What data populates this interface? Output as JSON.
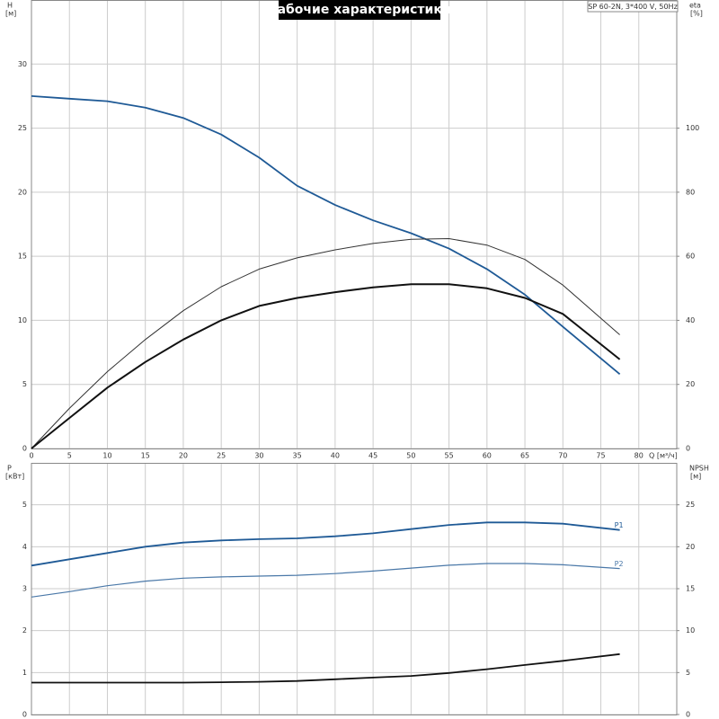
{
  "chart_data": [
    {
      "type": "line",
      "title": "Рабочие характеристики",
      "subtitle": "SP 60-2N, 3*400 V, 50Hz",
      "y_label": "H",
      "y_unit": "[м]",
      "y2_label": "eta",
      "y2_unit": "[%]",
      "x_label": "Q [м³/ч]",
      "x": [
        0,
        5,
        10,
        15,
        20,
        25,
        30,
        35,
        40,
        45,
        50,
        55,
        60,
        65,
        70,
        77.5
      ],
      "xlim": [
        0,
        85
      ],
      "xticks": [
        0,
        5,
        10,
        15,
        20,
        25,
        30,
        35,
        40,
        45,
        50,
        55,
        60,
        65,
        70,
        75,
        80
      ],
      "ylim": [
        0,
        35
      ],
      "yticks": [
        0,
        5,
        10,
        15,
        20,
        25,
        30
      ],
      "y2lim": [
        0,
        140
      ],
      "y2ticks": [
        0,
        20,
        40,
        60,
        80,
        100
      ],
      "grid": true,
      "series": [
        {
          "color": "#1f5a96",
          "width": 1.8,
          "values": [
            27.5,
            27.3,
            27.1,
            26.6,
            25.8,
            24.5,
            22.7,
            20.5,
            19,
            17.8,
            16.8,
            15.6,
            14,
            12,
            9.5,
            5.8
          ]
        },
        {
          "color": "#333333",
          "width": 1,
          "axis": "y2",
          "values": [
            0,
            12.5,
            24,
            34,
            43,
            50.5,
            56,
            59.5,
            62,
            64,
            65.3,
            65.5,
            63.5,
            59,
            51,
            35.5
          ]
        },
        {
          "color": "#111111",
          "width": 2,
          "axis": "y2",
          "values": [
            0,
            9.5,
            19,
            27,
            34,
            40,
            44.5,
            47,
            48.8,
            50.3,
            51.3,
            51.3,
            50,
            47,
            42,
            27.8
          ]
        }
      ]
    },
    {
      "type": "line",
      "y_label": "P",
      "y_unit": "[кВт]",
      "y2_label": "NPSH",
      "y2_unit": "[м]",
      "x": [
        0,
        5,
        10,
        15,
        20,
        25,
        30,
        35,
        40,
        45,
        50,
        55,
        60,
        65,
        70,
        77.5
      ],
      "xlim": [
        0,
        85
      ],
      "ylim": [
        0,
        6
      ],
      "yticks": [
        0,
        1,
        2,
        3,
        4,
        5
      ],
      "y2lim": [
        0,
        30
      ],
      "y2ticks": [
        0,
        5,
        10,
        15,
        20,
        25
      ],
      "grid": true,
      "series": [
        {
          "name": "P1",
          "color": "#1f5a96",
          "width": 1.8,
          "values": [
            3.55,
            3.7,
            3.85,
            4.0,
            4.1,
            4.15,
            4.18,
            4.2,
            4.25,
            4.32,
            4.42,
            4.52,
            4.58,
            4.58,
            4.55,
            4.4
          ]
        },
        {
          "name": "P2",
          "color": "#4a78a8",
          "width": 1.2,
          "values": [
            2.8,
            2.93,
            3.07,
            3.18,
            3.25,
            3.28,
            3.3,
            3.32,
            3.36,
            3.42,
            3.49,
            3.56,
            3.6,
            3.6,
            3.57,
            3.48
          ]
        },
        {
          "color": "#111111",
          "width": 1.8,
          "axis": "y2",
          "values": [
            3.8,
            3.8,
            3.8,
            3.8,
            3.8,
            3.85,
            3.9,
            4.0,
            4.2,
            4.4,
            4.6,
            4.95,
            5.4,
            5.9,
            6.4,
            7.2
          ]
        }
      ]
    }
  ]
}
